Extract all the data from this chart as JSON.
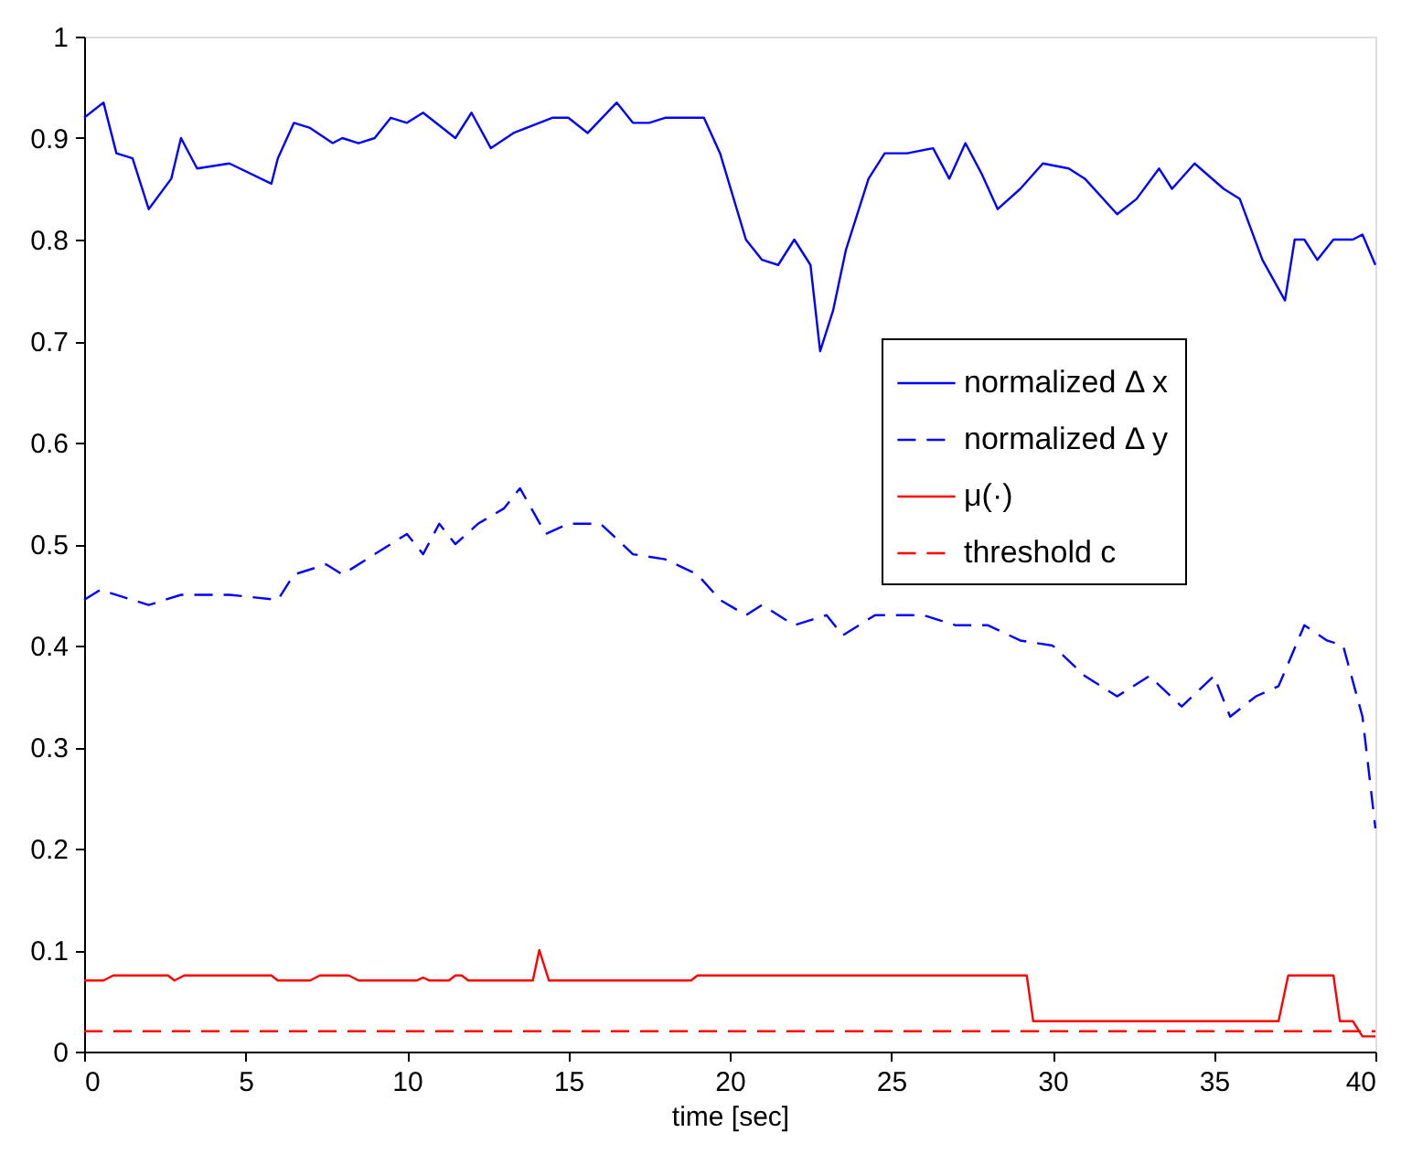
{
  "chart_data": {
    "type": "line",
    "xlabel": "time [sec]",
    "xlim": [
      0,
      40
    ],
    "xticks": [
      0,
      5,
      10,
      15,
      20,
      25,
      30,
      35,
      40
    ],
    "ylim": [
      0,
      1
    ],
    "yticks": [
      0,
      0.1,
      0.2,
      0.3,
      0.4,
      0.5,
      0.6,
      0.7,
      0.8,
      0.9,
      1
    ],
    "legend": "right",
    "grid": false,
    "series": [
      {
        "name": "normalized Δ x",
        "color": "#0000ff",
        "line_style": "solid",
        "x": [
          0,
          0.6,
          1,
          1.5,
          2,
          2.7,
          3,
          3.5,
          4.5,
          5.8,
          6,
          6.5,
          7,
          7.7,
          8,
          8.5,
          9,
          9.5,
          10,
          10.5,
          11.5,
          12,
          12.6,
          13.3,
          14.5,
          15,
          15.6,
          16.5,
          17,
          17.5,
          18,
          19.2,
          19.7,
          20.5,
          21,
          21.5,
          22,
          22.5,
          22.8,
          23.2,
          23.6,
          24.3,
          24.8,
          25.5,
          26.3,
          26.8,
          27.3,
          27.8,
          28.3,
          29,
          29.7,
          30.5,
          31,
          32,
          32.6,
          33.3,
          33.7,
          34.4,
          35.3,
          35.8,
          36.5,
          37.2,
          37.5,
          37.8,
          38.2,
          38.7,
          39.3,
          39.6,
          40
        ],
        "values": [
          0.92,
          0.935,
          0.885,
          0.88,
          0.83,
          0.86,
          0.9,
          0.87,
          0.875,
          0.855,
          0.88,
          0.915,
          0.91,
          0.895,
          0.9,
          0.895,
          0.9,
          0.92,
          0.915,
          0.925,
          0.9,
          0.925,
          0.89,
          0.905,
          0.92,
          0.92,
          0.905,
          0.935,
          0.915,
          0.915,
          0.92,
          0.92,
          0.885,
          0.8,
          0.78,
          0.775,
          0.8,
          0.775,
          0.69,
          0.73,
          0.79,
          0.86,
          0.885,
          0.885,
          0.89,
          0.86,
          0.895,
          0.865,
          0.83,
          0.85,
          0.875,
          0.87,
          0.86,
          0.825,
          0.84,
          0.87,
          0.85,
          0.875,
          0.85,
          0.84,
          0.78,
          0.74,
          0.8,
          0.8,
          0.78,
          0.8,
          0.8,
          0.805,
          0.775
        ]
      },
      {
        "name": "normalized Δ y",
        "color": "#0000ff",
        "line_style": "dashed",
        "x": [
          0,
          0.5,
          2,
          3,
          4.5,
          6,
          6.5,
          7.5,
          8,
          9,
          10,
          10.5,
          11,
          11.5,
          12.2,
          13,
          13.5,
          14.3,
          15,
          16,
          17,
          18,
          19,
          19.7,
          20.5,
          21,
          22,
          23,
          23.5,
          24.5,
          26,
          27,
          28,
          29,
          30,
          31,
          32,
          33,
          34,
          35,
          35.5,
          36.3,
          37,
          37.8,
          38.5,
          39,
          39.6,
          40
        ],
        "values": [
          0.445,
          0.455,
          0.44,
          0.45,
          0.45,
          0.445,
          0.47,
          0.48,
          0.47,
          0.49,
          0.51,
          0.49,
          0.52,
          0.5,
          0.52,
          0.535,
          0.555,
          0.51,
          0.52,
          0.52,
          0.49,
          0.485,
          0.47,
          0.445,
          0.43,
          0.44,
          0.42,
          0.43,
          0.41,
          0.43,
          0.43,
          0.42,
          0.42,
          0.405,
          0.4,
          0.37,
          0.35,
          0.37,
          0.34,
          0.37,
          0.33,
          0.35,
          0.36,
          0.42,
          0.405,
          0.4,
          0.33,
          0.22
        ]
      },
      {
        "name": "μ(·)",
        "color": "#ff0000",
        "line_style": "solid",
        "x": [
          0,
          0.6,
          0.9,
          2.6,
          2.8,
          3.1,
          5.8,
          6,
          7,
          7.3,
          8.2,
          8.5,
          10.3,
          10.5,
          10.7,
          11.3,
          11.5,
          11.7,
          11.9,
          13.9,
          14.1,
          14.4,
          18.8,
          19,
          29.2,
          29.4,
          37,
          37.3,
          38.7,
          38.9,
          39.3,
          39.6,
          40
        ],
        "values": [
          0.07,
          0.07,
          0.075,
          0.075,
          0.07,
          0.075,
          0.075,
          0.07,
          0.07,
          0.075,
          0.075,
          0.07,
          0.07,
          0.073,
          0.07,
          0.07,
          0.075,
          0.075,
          0.07,
          0.07,
          0.1,
          0.07,
          0.07,
          0.075,
          0.075,
          0.03,
          0.03,
          0.075,
          0.075,
          0.03,
          0.03,
          0.015,
          0.015
        ]
      },
      {
        "name": "threshold c",
        "color": "#ff0000",
        "line_style": "dashed",
        "x": [
          0,
          40
        ],
        "values": [
          0.02,
          0.02
        ]
      }
    ]
  }
}
